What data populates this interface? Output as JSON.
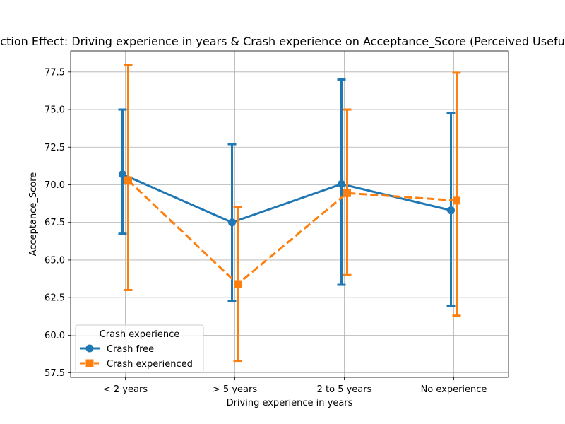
{
  "chart_data": {
    "type": "line",
    "title": "Interaction Effect: Driving experience in years & Crash experience on Acceptance_Score (Perceived Usefulness)",
    "xlabel": "Driving experience in years",
    "ylabel": "Acceptance_Score",
    "categories": [
      "< 2 years",
      "> 5 years",
      "2 to 5 years",
      "No experience"
    ],
    "ylim": [
      57.2,
      78.9
    ],
    "yticks": [
      57.5,
      60.0,
      62.5,
      65.0,
      67.5,
      70.0,
      72.5,
      75.0,
      77.5
    ],
    "ytick_labels": [
      "57.5",
      "60.0",
      "62.5",
      "65.0",
      "67.5",
      "70.0",
      "72.5",
      "75.0",
      "77.5"
    ],
    "grid": true,
    "legend": {
      "title": "Crash experience",
      "placement": "lower-left"
    },
    "series": [
      {
        "name": "Crash free",
        "color": "#1f77b4",
        "marker": "circle",
        "linestyle": "solid",
        "values": [
          70.7,
          67.5,
          70.05,
          68.3
        ],
        "ci_low": [
          66.75,
          62.25,
          63.35,
          61.95
        ],
        "ci_high": [
          75.0,
          72.7,
          77.0,
          74.75
        ]
      },
      {
        "name": "Crash experienced",
        "color": "#ff7f0e",
        "marker": "square",
        "linestyle": "dashed",
        "values": [
          70.3,
          63.4,
          69.45,
          68.95
        ],
        "ci_low": [
          63.0,
          58.3,
          64.0,
          61.3
        ],
        "ci_high": [
          77.95,
          68.5,
          75.0,
          77.45
        ]
      }
    ]
  }
}
